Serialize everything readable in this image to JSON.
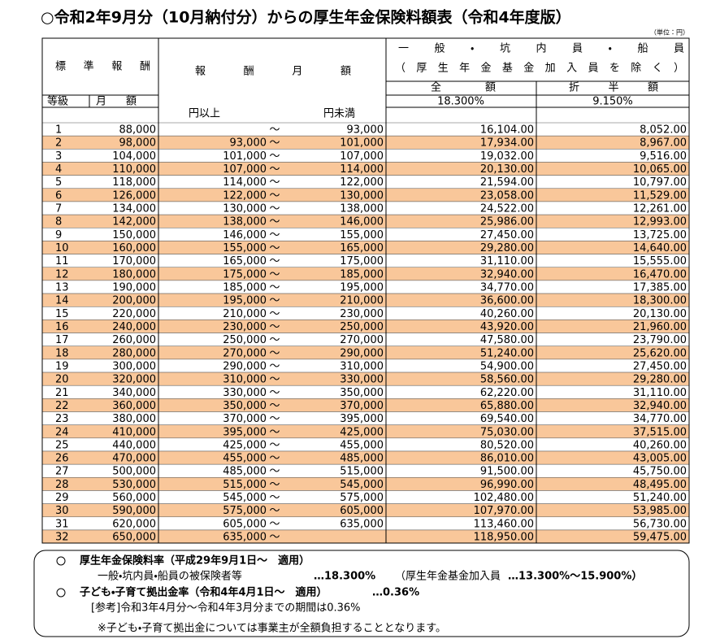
{
  "title": "○令和2年9月分（10月納付分）からの厚生年金保険料額表（令和4年度版）",
  "unit": "（単位：円）",
  "table": {
    "header": {
      "standard_remuneration": "標準報酬",
      "remuneration_monthly": "報酬月額",
      "general": "一般・坑内員・船員",
      "general_note": "（厚生年金基金加入員を除く）",
      "full_amount": "全額",
      "half_amount": "折半額",
      "grade": "等級",
      "monthly": "月額",
      "full_rate": "18.300%",
      "half_rate": "9.150%",
      "from": "円以上",
      "to": "円未満"
    },
    "range_separator": "～",
    "rows": [
      [
        "1",
        "88,000",
        null,
        "93,000",
        "16,104.00",
        "8,052.00"
      ],
      [
        "2",
        "98,000",
        "93,000",
        "101,000",
        "17,934.00",
        "8,967.00"
      ],
      [
        "3",
        "104,000",
        "101,000",
        "107,000",
        "19,032.00",
        "9,516.00"
      ],
      [
        "4",
        "110,000",
        "107,000",
        "114,000",
        "20,130.00",
        "10,065.00"
      ],
      [
        "5",
        "118,000",
        "114,000",
        "122,000",
        "21,594.00",
        "10,797.00"
      ],
      [
        "6",
        "126,000",
        "122,000",
        "130,000",
        "23,058.00",
        "11,529.00"
      ],
      [
        "7",
        "134,000",
        "130,000",
        "138,000",
        "24,522.00",
        "12,261.00"
      ],
      [
        "8",
        "142,000",
        "138,000",
        "146,000",
        "25,986.00",
        "12,993.00"
      ],
      [
        "9",
        "150,000",
        "146,000",
        "155,000",
        "27,450.00",
        "13,725.00"
      ],
      [
        "10",
        "160,000",
        "155,000",
        "165,000",
        "29,280.00",
        "14,640.00"
      ],
      [
        "11",
        "170,000",
        "165,000",
        "175,000",
        "31,110.00",
        "15,555.00"
      ],
      [
        "12",
        "180,000",
        "175,000",
        "185,000",
        "32,940.00",
        "16,470.00"
      ],
      [
        "13",
        "190,000",
        "185,000",
        "195,000",
        "34,770.00",
        "17,385.00"
      ],
      [
        "14",
        "200,000",
        "195,000",
        "210,000",
        "36,600.00",
        "18,300.00"
      ],
      [
        "15",
        "220,000",
        "210,000",
        "230,000",
        "40,260.00",
        "20,130.00"
      ],
      [
        "16",
        "240,000",
        "230,000",
        "250,000",
        "43,920.00",
        "21,960.00"
      ],
      [
        "17",
        "260,000",
        "250,000",
        "270,000",
        "47,580.00",
        "23,790.00"
      ],
      [
        "18",
        "280,000",
        "270,000",
        "290,000",
        "51,240.00",
        "25,620.00"
      ],
      [
        "19",
        "300,000",
        "290,000",
        "310,000",
        "54,900.00",
        "27,450.00"
      ],
      [
        "20",
        "320,000",
        "310,000",
        "330,000",
        "58,560.00",
        "29,280.00"
      ],
      [
        "21",
        "340,000",
        "330,000",
        "350,000",
        "62,220.00",
        "31,110.00"
      ],
      [
        "22",
        "360,000",
        "350,000",
        "370,000",
        "65,880.00",
        "32,940.00"
      ],
      [
        "23",
        "380,000",
        "370,000",
        "395,000",
        "69,540.00",
        "34,770.00"
      ],
      [
        "24",
        "410,000",
        "395,000",
        "425,000",
        "75,030.00",
        "37,515.00"
      ],
      [
        "25",
        "440,000",
        "425,000",
        "455,000",
        "80,520.00",
        "40,260.00"
      ],
      [
        "26",
        "470,000",
        "455,000",
        "485,000",
        "86,010.00",
        "43,005.00"
      ],
      [
        "27",
        "500,000",
        "485,000",
        "515,000",
        "91,500.00",
        "45,750.00"
      ],
      [
        "28",
        "530,000",
        "515,000",
        "545,000",
        "96,990.00",
        "48,495.00"
      ],
      [
        "29",
        "560,000",
        "545,000",
        "575,000",
        "102,480.00",
        "51,240.00"
      ],
      [
        "30",
        "590,000",
        "575,000",
        "605,000",
        "107,970.00",
        "53,985.00"
      ],
      [
        "31",
        "620,000",
        "605,000",
        "635,000",
        "113,460.00",
        "56,730.00"
      ],
      [
        "32",
        "650,000",
        "635,000",
        null,
        "118,950.00",
        "59,475.00"
      ]
    ]
  },
  "notes": {
    "pension_rate_title": "厚生年金保険料率（平成29年9月1日～　適用）",
    "pension_target": "一般・坑内員・船員の被保険者等",
    "pension_rate": "…18.300%",
    "fund_target": "（厚生年金基金加入員",
    "fund_rate": "…13.300%～15.900%）",
    "child_rate_title": "子ども・子育て拠出金率（令和4年4月1日～　適用）",
    "child_rate": "…0.36%",
    "reference": "[参考]令和3年4月分～令和4年3月分までの期間は0.36%",
    "remark": "※子ども・子育て拠出金については事業主が全額負担することとなります。"
  }
}
